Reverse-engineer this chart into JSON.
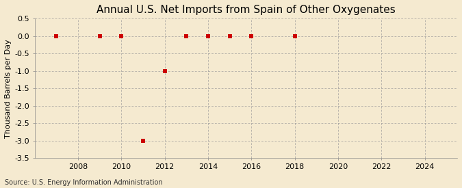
{
  "title": "Annual U.S. Net Imports from Spain of Other Oxygenates",
  "ylabel": "Thousand Barrels per Day",
  "source": "Source: U.S. Energy Information Administration",
  "background_color": "#f5ead0",
  "plot_bg_color": "#f5ead0",
  "x_years": [
    2007,
    2009,
    2010,
    2011,
    2012,
    2013,
    2014,
    2015,
    2016,
    2018
  ],
  "y_values": [
    0.0,
    0.0,
    0.0,
    -3.0,
    -1.0,
    0.0,
    0.0,
    0.0,
    0.0,
    0.0
  ],
  "xlim": [
    2006.0,
    2025.5
  ],
  "ylim": [
    -3.5,
    0.5
  ],
  "yticks": [
    0.5,
    0.0,
    -0.5,
    -1.0,
    -1.5,
    -2.0,
    -2.5,
    -3.0,
    -3.5
  ],
  "ytick_labels": [
    "0.5",
    "0.0",
    "-0.5",
    "-1.0",
    "-1.5",
    "-2.0",
    "-2.5",
    "-3.0",
    "-3.5"
  ],
  "xticks": [
    2008,
    2010,
    2012,
    2014,
    2016,
    2018,
    2020,
    2022,
    2024
  ],
  "marker_color": "#cc0000",
  "marker_size": 4,
  "grid_color": "#999999",
  "title_fontsize": 11,
  "label_fontsize": 8,
  "tick_fontsize": 8,
  "source_fontsize": 7
}
